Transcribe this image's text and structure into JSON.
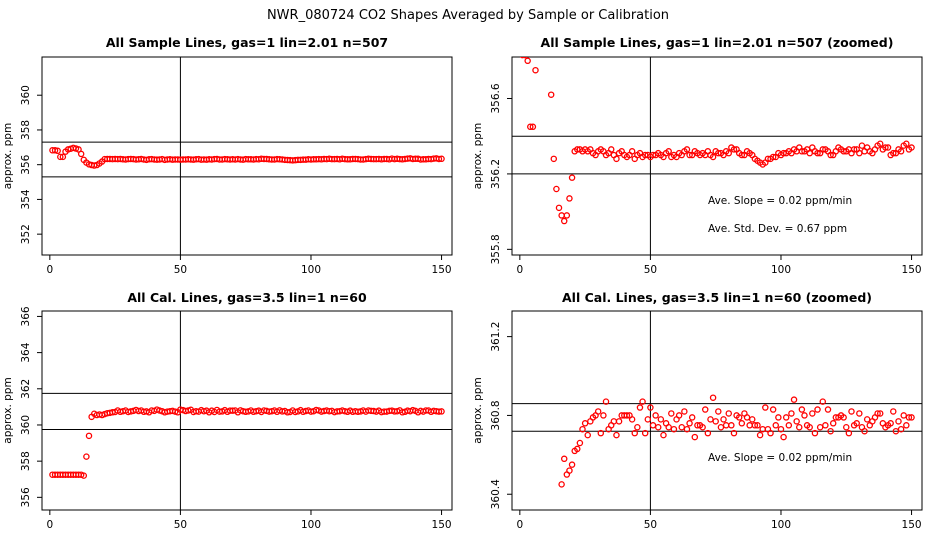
{
  "main_title": "NWR_080724  CO2 Shapes Averaged by Sample or Calibration",
  "colors": {
    "points": "#ff0000",
    "lines": "#000000",
    "background": "#ffffff"
  },
  "chart_data": [
    {
      "type": "scatter",
      "title": "All Sample Lines, gas=1 lin=2.01 n=507",
      "xlabel": "",
      "ylabel": "approx. ppm",
      "xlim": [
        -3,
        154
      ],
      "ylim": [
        350.8,
        362.2
      ],
      "xticks": [
        0,
        50,
        100,
        150
      ],
      "yticks": [
        352,
        354,
        356,
        358,
        360
      ],
      "vline": 50,
      "hlines": [
        355.3,
        357.3
      ],
      "annotations": [],
      "points": {
        "x_start": 1,
        "x_step": 1,
        "y": [
          356.83,
          356.83,
          356.8,
          356.45,
          356.45,
          356.75,
          356.88,
          356.92,
          356.97,
          356.93,
          356.88,
          356.62,
          356.28,
          356.12,
          356.02,
          355.98,
          355.95,
          355.98,
          356.07,
          356.18,
          356.32,
          356.33,
          356.33,
          356.32,
          356.33,
          356.32,
          356.33,
          356.31,
          356.3,
          356.32,
          356.33,
          356.32,
          356.3,
          356.31,
          356.33,
          356.3,
          356.28,
          356.31,
          356.32,
          356.3,
          356.29,
          356.3,
          356.32,
          356.28,
          356.3,
          356.31,
          356.29,
          356.3,
          356.3,
          356.29,
          356.3,
          356.3,
          356.31,
          356.3,
          356.29,
          356.31,
          356.32,
          356.29,
          356.3,
          356.29,
          356.31,
          356.3,
          356.32,
          356.33,
          356.3,
          356.3,
          356.32,
          356.31,
          356.3,
          356.31,
          356.3,
          356.32,
          356.3,
          356.29,
          356.32,
          356.31,
          356.31,
          356.3,
          356.32,
          356.31,
          356.34,
          356.33,
          356.33,
          356.31,
          356.3,
          356.3,
          356.32,
          356.31,
          356.3,
          356.28,
          356.27,
          356.26,
          356.25,
          356.26,
          356.28,
          356.28,
          356.29,
          356.29,
          356.31,
          356.3,
          356.31,
          356.31,
          356.32,
          356.31,
          356.33,
          356.32,
          356.34,
          356.32,
          356.32,
          356.33,
          356.31,
          356.34,
          356.32,
          356.31,
          356.31,
          356.33,
          356.33,
          356.32,
          356.3,
          356.3,
          356.32,
          356.34,
          356.33,
          356.32,
          356.32,
          356.33,
          356.31,
          356.33,
          356.33,
          356.31,
          356.35,
          356.32,
          356.34,
          356.32,
          356.31,
          356.33,
          356.35,
          356.36,
          356.33,
          356.34,
          356.34,
          356.3,
          356.31,
          356.31,
          356.33,
          356.32,
          356.35,
          356.36,
          356.33,
          356.34
        ]
      }
    },
    {
      "type": "scatter",
      "title": "All Sample Lines, gas=1 lin=2.01 n=507 (zoomed)",
      "xlabel": "",
      "ylabel": "approx. ppm",
      "xlim": [
        -3,
        154
      ],
      "ylim": [
        355.77,
        356.82
      ],
      "xticks": [
        0,
        50,
        100,
        150
      ],
      "yticks": [
        355.8,
        356.2,
        356.6
      ],
      "vline": 50,
      "hlines": [
        356.2,
        356.4
      ],
      "annotations": [
        "Ave. Slope =  0.02  ppm/min",
        "Ave. Std. Dev. =  0.67  ppm"
      ],
      "points": {
        "x_start": 1,
        "x_step": 1,
        "y": [
          356.83,
          356.83,
          356.8,
          356.45,
          356.45,
          356.75,
          356.88,
          356.92,
          356.97,
          356.93,
          356.88,
          356.62,
          356.28,
          356.12,
          356.02,
          355.98,
          355.95,
          355.98,
          356.07,
          356.18,
          356.32,
          356.33,
          356.33,
          356.32,
          356.33,
          356.32,
          356.33,
          356.31,
          356.3,
          356.32,
          356.33,
          356.32,
          356.3,
          356.31,
          356.33,
          356.3,
          356.28,
          356.31,
          356.32,
          356.3,
          356.29,
          356.3,
          356.32,
          356.28,
          356.3,
          356.31,
          356.29,
          356.3,
          356.3,
          356.29,
          356.3,
          356.3,
          356.31,
          356.3,
          356.29,
          356.31,
          356.32,
          356.29,
          356.3,
          356.29,
          356.31,
          356.3,
          356.32,
          356.33,
          356.3,
          356.3,
          356.32,
          356.31,
          356.3,
          356.31,
          356.3,
          356.32,
          356.3,
          356.29,
          356.32,
          356.31,
          356.31,
          356.3,
          356.32,
          356.31,
          356.34,
          356.33,
          356.33,
          356.31,
          356.3,
          356.3,
          356.32,
          356.31,
          356.3,
          356.28,
          356.27,
          356.26,
          356.25,
          356.26,
          356.28,
          356.28,
          356.29,
          356.29,
          356.31,
          356.3,
          356.31,
          356.31,
          356.32,
          356.31,
          356.33,
          356.32,
          356.34,
          356.32,
          356.32,
          356.33,
          356.31,
          356.34,
          356.32,
          356.31,
          356.31,
          356.33,
          356.33,
          356.32,
          356.3,
          356.3,
          356.32,
          356.34,
          356.33,
          356.32,
          356.32,
          356.33,
          356.31,
          356.33,
          356.33,
          356.31,
          356.35,
          356.32,
          356.34,
          356.32,
          356.31,
          356.33,
          356.35,
          356.36,
          356.33,
          356.34,
          356.34,
          356.3,
          356.31,
          356.31,
          356.33,
          356.32,
          356.35,
          356.36,
          356.33,
          356.34
        ]
      }
    },
    {
      "type": "scatter",
      "title": "All Cal. Lines, gas=3.5 lin=1 n=60",
      "xlabel": "",
      "ylabel": "approx. ppm",
      "xlim": [
        -3,
        154
      ],
      "ylim": [
        355.3,
        366.3
      ],
      "xticks": [
        0,
        50,
        100,
        150
      ],
      "yticks": [
        356,
        358,
        360,
        362,
        364,
        366
      ],
      "vline": 50,
      "hlines": [
        359.75,
        361.75
      ],
      "annotations": [],
      "points": {
        "x_start": 1,
        "x_step": 1,
        "y": [
          357.25,
          357.25,
          357.25,
          357.25,
          357.25,
          357.25,
          357.25,
          357.25,
          357.25,
          357.25,
          357.25,
          357.25,
          357.2,
          358.25,
          359.4,
          360.45,
          360.62,
          360.55,
          360.58,
          360.55,
          360.6,
          360.65,
          360.67,
          360.7,
          360.72,
          360.8,
          360.73,
          360.76,
          360.8,
          360.72,
          360.75,
          360.78,
          360.83,
          360.77,
          360.8,
          360.73,
          360.75,
          360.7,
          360.8,
          360.78,
          360.85,
          360.8,
          360.76,
          360.7,
          360.74,
          360.76,
          360.78,
          360.74,
          360.7,
          360.85,
          360.82,
          360.77,
          360.8,
          360.84,
          360.72,
          360.76,
          360.74,
          360.82,
          360.76,
          360.79,
          360.7,
          360.79,
          360.72,
          360.83,
          360.74,
          360.75,
          360.82,
          360.73,
          360.79,
          360.79,
          360.8,
          360.7,
          360.81,
          360.76,
          360.73,
          360.75,
          360.8,
          360.73,
          360.76,
          360.79,
          360.72,
          360.8,
          360.78,
          360.74,
          360.76,
          360.8,
          360.73,
          360.81,
          360.75,
          360.77,
          360.7,
          360.72,
          360.8,
          360.72,
          360.75,
          360.82,
          360.73,
          360.77,
          360.8,
          360.74,
          360.76,
          360.83,
          360.8,
          360.74,
          360.77,
          360.8,
          360.76,
          360.78,
          360.71,
          360.75,
          360.76,
          360.8,
          360.76,
          360.73,
          360.79,
          360.73,
          360.76,
          360.73,
          360.75,
          360.8,
          360.74,
          360.8,
          360.78,
          360.77,
          360.74,
          360.79,
          360.71,
          360.74,
          360.74,
          360.78,
          360.79,
          360.75,
          360.76,
          360.81,
          360.7,
          360.73,
          360.79,
          360.76,
          360.82,
          360.78,
          360.7,
          360.78,
          360.74,
          360.8,
          360.8,
          360.73,
          360.78,
          360.76,
          360.74,
          360.75
        ]
      }
    },
    {
      "type": "scatter",
      "title": "All Cal. Lines, gas=3.5 lin=1 n=60 (zoomed)",
      "xlabel": "",
      "ylabel": "approx. ppm",
      "xlim": [
        -3,
        154
      ],
      "ylim": [
        360.32,
        361.33
      ],
      "xticks": [
        0,
        50,
        100,
        150
      ],
      "yticks": [
        360.4,
        360.8,
        361.2
      ],
      "vline": 50,
      "hlines": [
        360.72,
        360.86
      ],
      "annotations": [
        "Ave. Slope =  0.02  ppm/min"
      ],
      "points": {
        "x_start": 16,
        "x_step": 1,
        "y": [
          360.45,
          360.58,
          360.5,
          360.52,
          360.55,
          360.62,
          360.63,
          360.66,
          360.73,
          360.76,
          360.7,
          360.77,
          360.79,
          360.8,
          360.82,
          360.71,
          360.8,
          360.87,
          360.73,
          360.75,
          360.77,
          360.7,
          360.77,
          360.8,
          360.8,
          360.8,
          360.8,
          360.78,
          360.71,
          360.74,
          360.84,
          360.87,
          360.71,
          360.78,
          360.84,
          360.75,
          360.8,
          360.74,
          360.78,
          360.7,
          360.76,
          360.74,
          360.81,
          360.73,
          360.78,
          360.8,
          360.74,
          360.82,
          360.73,
          360.76,
          360.79,
          360.69,
          360.75,
          360.75,
          360.74,
          360.83,
          360.71,
          360.78,
          360.89,
          360.77,
          360.82,
          360.74,
          360.78,
          360.75,
          360.81,
          360.75,
          360.71,
          360.8,
          360.79,
          360.76,
          360.81,
          360.79,
          360.75,
          360.78,
          360.75,
          360.75,
          360.7,
          360.73,
          360.84,
          360.73,
          360.71,
          360.83,
          360.75,
          360.79,
          360.73,
          360.69,
          360.79,
          360.75,
          360.81,
          360.88,
          360.77,
          360.74,
          360.83,
          360.8,
          360.75,
          360.74,
          360.81,
          360.71,
          360.83,
          360.74,
          360.87,
          360.75,
          360.83,
          360.72,
          360.76,
          360.79,
          360.79,
          360.8,
          360.79,
          360.74,
          360.71,
          360.82,
          360.75,
          360.76,
          360.81,
          360.74,
          360.72,
          360.78,
          360.75,
          360.77,
          360.79,
          360.81,
          360.81,
          360.76,
          360.74,
          360.75,
          360.76,
          360.82,
          360.72,
          360.77,
          360.73,
          360.8,
          360.75,
          360.79,
          360.79
        ]
      }
    }
  ]
}
